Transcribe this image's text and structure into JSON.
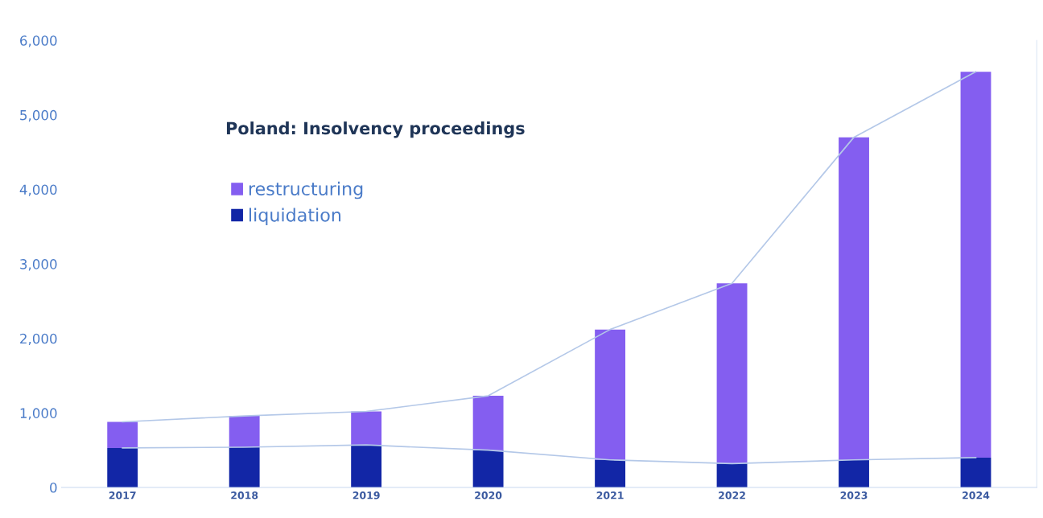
{
  "chart_data": {
    "type": "bar",
    "title": "Poland: Insolvency proceedings",
    "stacked": true,
    "categories": [
      "2017",
      "2018",
      "2019",
      "2020",
      "2021",
      "2022",
      "2023",
      "2024"
    ],
    "series": [
      {
        "name": "liquidation",
        "color": "#1226a6",
        "values": [
          530,
          540,
          570,
          500,
          370,
          320,
          370,
          400
        ]
      },
      {
        "name": "restructuring",
        "color": "#845ef0",
        "values": [
          350,
          420,
          450,
          730,
          1750,
          2420,
          4330,
          5180
        ]
      },
      {
        "type": "line",
        "color": "#b4c8e8",
        "values": [
          530,
          540,
          570,
          500,
          370,
          320,
          370,
          400
        ]
      },
      {
        "type": "line",
        "color": "#b4c8e8",
        "values": [
          880,
          960,
          1020,
          1230,
          2120,
          2740,
          4700,
          5580
        ]
      }
    ],
    "ylim": [
      0,
      6000
    ],
    "yticks": [
      {
        "value": 0,
        "label": "0"
      },
      {
        "value": 1000,
        "label": "1,000"
      },
      {
        "value": 2000,
        "label": "2,000"
      },
      {
        "value": 3000,
        "label": "3,000"
      },
      {
        "value": 4000,
        "label": "4,000"
      },
      {
        "value": 5000,
        "label": "5,000"
      },
      {
        "value": 6000,
        "label": "6,000"
      }
    ],
    "grid": false,
    "legend": "top left"
  }
}
